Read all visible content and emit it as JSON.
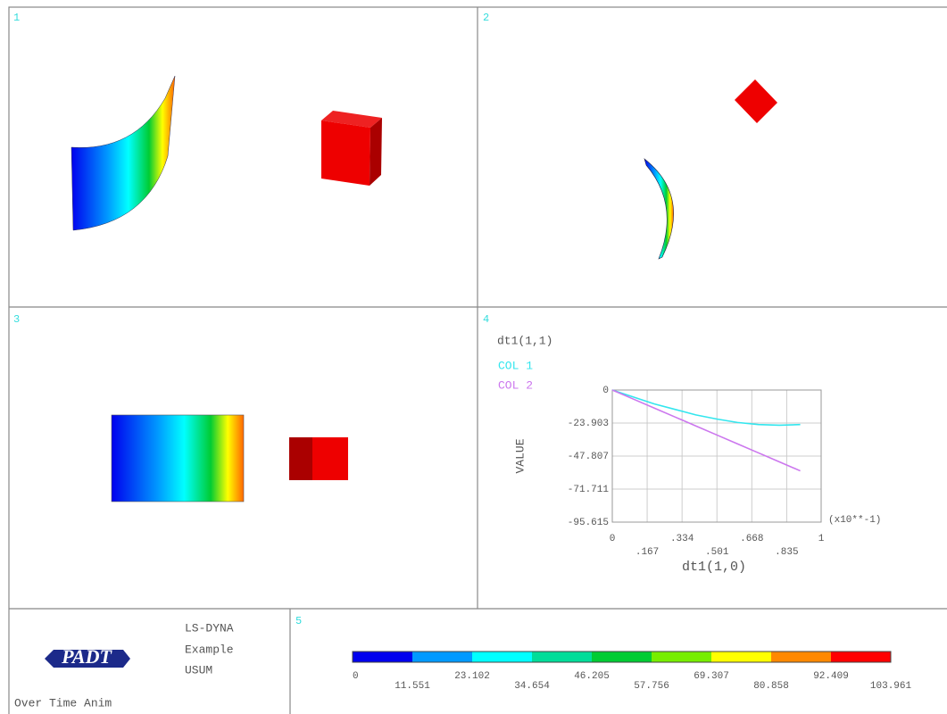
{
  "viewports": [
    {
      "label": "1"
    },
    {
      "label": "2"
    },
    {
      "label": "3"
    },
    {
      "label": "4"
    },
    {
      "label": "5"
    }
  ],
  "info": {
    "lines": [
      "LS-DYNA",
      "Example",
      "USUM"
    ],
    "logo": "PADT",
    "caption": "Over Time Anim"
  },
  "contour_legend": {
    "ticks": [
      0,
      11.551,
      23.102,
      34.654,
      46.205,
      57.756,
      69.307,
      80.858,
      92.409,
      103.961
    ],
    "colors": [
      "#0000ee",
      "#0099ff",
      "#00ffff",
      "#00dd99",
      "#00cc33",
      "#77ee00",
      "#ffff00",
      "#ff8800",
      "#ff0000"
    ]
  },
  "chart_data": {
    "type": "line",
    "title": "dt1(1,1)",
    "xlabel": "dt1(1,0)",
    "ylabel": "VALUE",
    "x_multiplier": "(x10**-1)",
    "x": [
      0,
      0.1,
      0.2,
      0.3,
      0.4,
      0.5,
      0.6,
      0.7,
      0.8,
      0.9
    ],
    "series": [
      {
        "name": "COL  1",
        "color": "#33e6ee",
        "values": [
          0,
          -5,
          -10,
          -14,
          -18,
          -21,
          -23.5,
          -25,
          -25.5,
          -25
        ]
      },
      {
        "name": "COL  2",
        "color": "#cc77ee",
        "values": [
          0,
          -6.5,
          -13,
          -19.5,
          -26,
          -32.5,
          -39,
          -45.5,
          -52,
          -58.5
        ]
      }
    ],
    "xlim": [
      0,
      1
    ],
    "ylim": [
      -95.615,
      0
    ],
    "xticks": [
      0,
      {
        "value": 0.167,
        "label": ".167"
      },
      {
        "value": 0.334,
        "label": ".334"
      },
      {
        "value": 0.501,
        "label": ".501"
      },
      {
        "value": 0.668,
        "label": ".668"
      },
      {
        "value": 0.835,
        "label": ".835"
      },
      1
    ],
    "yticks": [
      0,
      -23.903,
      -47.807,
      -71.711,
      -95.615
    ],
    "grid": true
  }
}
